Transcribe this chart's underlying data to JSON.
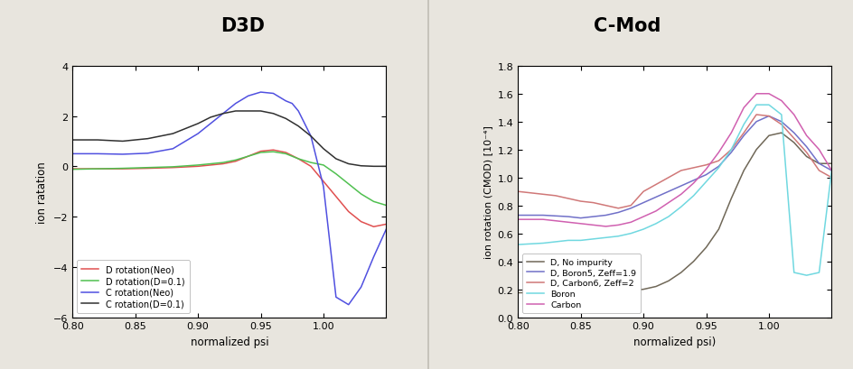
{
  "background_color": "#e8e5de",
  "title_d3d": "D3D",
  "title_cmod": "C-Mod",
  "d3d": {
    "xlabel": "normalized psi",
    "ylabel": "ion ratation",
    "xlim": [
      0.8,
      1.05
    ],
    "ylim": [
      -6,
      4
    ],
    "yticks": [
      -6,
      -4,
      -2,
      0,
      2,
      4
    ],
    "xticks": [
      0.8,
      0.85,
      0.9,
      0.95,
      1.0
    ],
    "lines": {
      "D_Neo": {
        "color": "#e05050",
        "label": "D rotation(Neo)",
        "x": [
          0.8,
          0.82,
          0.84,
          0.86,
          0.88,
          0.9,
          0.91,
          0.92,
          0.93,
          0.94,
          0.95,
          0.96,
          0.97,
          0.98,
          0.99,
          1.0,
          1.01,
          1.02,
          1.03,
          1.04,
          1.05
        ],
        "y": [
          -0.1,
          -0.1,
          -0.1,
          -0.08,
          -0.05,
          0.0,
          0.05,
          0.1,
          0.2,
          0.4,
          0.6,
          0.65,
          0.55,
          0.3,
          0.0,
          -0.6,
          -1.2,
          -1.8,
          -2.2,
          -2.4,
          -2.3
        ]
      },
      "D_D01": {
        "color": "#50c050",
        "label": "D rotation(D=0.1)",
        "x": [
          0.8,
          0.82,
          0.84,
          0.86,
          0.88,
          0.9,
          0.91,
          0.92,
          0.93,
          0.94,
          0.95,
          0.96,
          0.97,
          0.98,
          0.99,
          1.0,
          1.01,
          1.02,
          1.03,
          1.04,
          1.05
        ],
        "y": [
          -0.12,
          -0.1,
          -0.08,
          -0.05,
          -0.02,
          0.05,
          0.1,
          0.15,
          0.25,
          0.4,
          0.55,
          0.58,
          0.5,
          0.3,
          0.15,
          0.05,
          -0.3,
          -0.7,
          -1.1,
          -1.4,
          -1.55
        ]
      },
      "C_Neo": {
        "color": "#5050e0",
        "label": "C rotation(Neo)",
        "x": [
          0.8,
          0.82,
          0.84,
          0.86,
          0.88,
          0.9,
          0.91,
          0.92,
          0.93,
          0.94,
          0.95,
          0.96,
          0.97,
          0.975,
          0.98,
          0.99,
          1.0,
          1.005,
          1.01,
          1.02,
          1.03,
          1.04,
          1.05
        ],
        "y": [
          0.5,
          0.5,
          0.48,
          0.52,
          0.7,
          1.3,
          1.7,
          2.1,
          2.5,
          2.8,
          2.95,
          2.9,
          2.6,
          2.5,
          2.2,
          1.2,
          -0.8,
          -3.0,
          -5.2,
          -5.5,
          -4.8,
          -3.6,
          -2.5
        ]
      },
      "C_D01": {
        "color": "#303030",
        "label": "C rotation(D=0.1)",
        "x": [
          0.8,
          0.82,
          0.84,
          0.86,
          0.88,
          0.9,
          0.91,
          0.92,
          0.93,
          0.94,
          0.95,
          0.96,
          0.97,
          0.98,
          0.99,
          1.0,
          1.01,
          1.02,
          1.03,
          1.04,
          1.05
        ],
        "y": [
          1.05,
          1.05,
          1.0,
          1.1,
          1.3,
          1.7,
          1.95,
          2.1,
          2.2,
          2.2,
          2.2,
          2.1,
          1.9,
          1.6,
          1.2,
          0.7,
          0.3,
          0.1,
          0.02,
          0.0,
          0.0
        ]
      }
    }
  },
  "cmod": {
    "xlabel": "normalized psi)",
    "ylabel": "ion rotation (CMOD) [10⁻⁴]",
    "xlim": [
      0.8,
      1.05
    ],
    "ylim": [
      0,
      1.8
    ],
    "yticks": [
      0,
      0.2,
      0.4,
      0.6,
      0.8,
      1.0,
      1.2,
      1.4,
      1.6,
      1.8
    ],
    "xticks": [
      0.8,
      0.85,
      0.9,
      0.95,
      1.0
    ],
    "lines": {
      "D_No": {
        "color": "#706858",
        "label": "D, No impurity",
        "x": [
          0.8,
          0.82,
          0.84,
          0.86,
          0.87,
          0.88,
          0.89,
          0.9,
          0.91,
          0.92,
          0.93,
          0.94,
          0.95,
          0.96,
          0.97,
          0.98,
          0.99,
          1.0,
          1.01,
          1.02,
          1.03,
          1.04,
          1.05
        ],
        "y": [
          0.175,
          0.175,
          0.175,
          0.178,
          0.18,
          0.185,
          0.19,
          0.2,
          0.22,
          0.26,
          0.32,
          0.4,
          0.5,
          0.63,
          0.85,
          1.05,
          1.2,
          1.3,
          1.32,
          1.25,
          1.15,
          1.1,
          1.1
        ]
      },
      "D_Boron": {
        "color": "#7070c8",
        "label": "D, Boron5, Zeff=1.9",
        "x": [
          0.8,
          0.82,
          0.84,
          0.85,
          0.86,
          0.87,
          0.88,
          0.89,
          0.9,
          0.91,
          0.92,
          0.93,
          0.94,
          0.95,
          0.96,
          0.97,
          0.98,
          0.99,
          1.0,
          1.01,
          1.02,
          1.03,
          1.04,
          1.05
        ],
        "y": [
          0.73,
          0.73,
          0.72,
          0.71,
          0.72,
          0.73,
          0.75,
          0.78,
          0.82,
          0.86,
          0.9,
          0.94,
          0.98,
          1.02,
          1.08,
          1.18,
          1.3,
          1.4,
          1.44,
          1.4,
          1.32,
          1.22,
          1.1,
          1.05
        ]
      },
      "D_Carbon": {
        "color": "#d07878",
        "label": "D, Carbon6, Zeff=2",
        "x": [
          0.8,
          0.82,
          0.83,
          0.84,
          0.85,
          0.86,
          0.87,
          0.88,
          0.89,
          0.9,
          0.91,
          0.92,
          0.93,
          0.94,
          0.95,
          0.96,
          0.97,
          0.98,
          0.99,
          1.0,
          1.01,
          1.02,
          1.03,
          1.04,
          1.05
        ],
        "y": [
          0.9,
          0.88,
          0.87,
          0.85,
          0.83,
          0.82,
          0.8,
          0.78,
          0.8,
          0.9,
          0.95,
          1.0,
          1.05,
          1.07,
          1.09,
          1.12,
          1.2,
          1.32,
          1.45,
          1.44,
          1.38,
          1.28,
          1.18,
          1.05,
          1.0
        ]
      },
      "Boron": {
        "color": "#70d8e0",
        "label": "Boron",
        "x": [
          0.8,
          0.82,
          0.83,
          0.84,
          0.85,
          0.86,
          0.87,
          0.88,
          0.89,
          0.9,
          0.91,
          0.92,
          0.93,
          0.94,
          0.95,
          0.96,
          0.97,
          0.98,
          0.99,
          1.0,
          1.01,
          1.02,
          1.03,
          1.04,
          1.05
        ],
        "y": [
          0.52,
          0.53,
          0.54,
          0.55,
          0.55,
          0.56,
          0.57,
          0.58,
          0.6,
          0.63,
          0.67,
          0.72,
          0.79,
          0.87,
          0.97,
          1.07,
          1.2,
          1.38,
          1.52,
          1.52,
          1.45,
          0.32,
          0.3,
          0.32,
          1.05
        ]
      },
      "Carbon": {
        "color": "#d060b0",
        "label": "Carbon",
        "x": [
          0.8,
          0.82,
          0.83,
          0.84,
          0.85,
          0.86,
          0.87,
          0.88,
          0.89,
          0.9,
          0.91,
          0.92,
          0.93,
          0.94,
          0.95,
          0.96,
          0.97,
          0.98,
          0.99,
          1.0,
          1.01,
          1.02,
          1.03,
          1.04,
          1.05
        ],
        "y": [
          0.7,
          0.7,
          0.69,
          0.68,
          0.67,
          0.66,
          0.65,
          0.66,
          0.68,
          0.72,
          0.76,
          0.82,
          0.88,
          0.96,
          1.06,
          1.18,
          1.32,
          1.5,
          1.6,
          1.6,
          1.55,
          1.45,
          1.3,
          1.2,
          1.05
        ]
      }
    }
  }
}
